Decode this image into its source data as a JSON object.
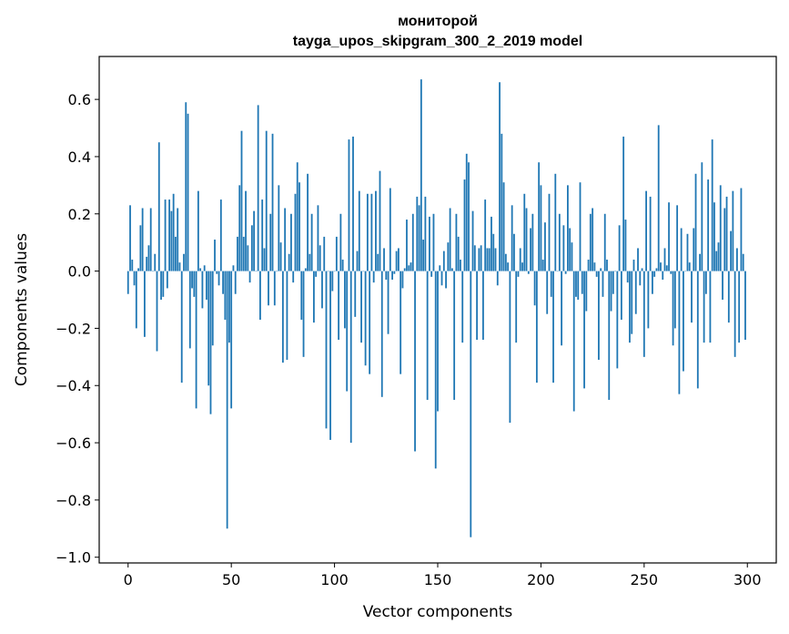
{
  "chart_data": {
    "type": "bar",
    "title_line1": "мониторой",
    "title_line2": "tayga_upos_skipgram_300_2_2019 model",
    "xlabel": "Vector components",
    "ylabel": "Components values",
    "xlim": [
      -14,
      314
    ],
    "ylim": [
      -1.02,
      0.75
    ],
    "xticks": [
      0,
      50,
      100,
      150,
      200,
      250,
      300
    ],
    "yticks": [
      -1.0,
      -0.8,
      -0.6,
      -0.4,
      -0.2,
      0.0,
      0.2,
      0.4,
      0.6
    ],
    "ytick_labels": [
      "−1.0",
      "−0.8",
      "−0.6",
      "−0.4",
      "−0.2",
      "0.0",
      "0.2",
      "0.4",
      "0.6"
    ],
    "bar_color": "#1f77b4",
    "values": [
      -0.08,
      0.23,
      0.04,
      -0.05,
      -0.2,
      0.01,
      0.16,
      0.22,
      -0.23,
      0.05,
      0.09,
      0.22,
      0.0,
      0.06,
      -0.28,
      0.45,
      -0.1,
      -0.09,
      0.25,
      -0.06,
      0.25,
      0.21,
      0.27,
      0.12,
      0.22,
      0.03,
      -0.39,
      0.06,
      0.59,
      0.55,
      -0.27,
      -0.06,
      -0.09,
      -0.48,
      0.28,
      0.01,
      -0.13,
      0.02,
      -0.1,
      -0.4,
      -0.5,
      -0.26,
      0.11,
      -0.01,
      -0.05,
      0.25,
      -0.08,
      -0.17,
      -0.9,
      -0.25,
      -0.48,
      0.02,
      -0.08,
      0.12,
      0.3,
      0.49,
      0.12,
      0.28,
      0.09,
      -0.04,
      0.16,
      0.21,
      0.0,
      0.58,
      -0.17,
      0.25,
      0.08,
      0.49,
      -0.12,
      0.2,
      0.48,
      -0.12,
      0.0,
      0.3,
      0.1,
      -0.32,
      0.22,
      -0.31,
      0.06,
      0.2,
      -0.04,
      0.27,
      0.38,
      0.31,
      -0.17,
      -0.3,
      0.01,
      0.34,
      0.06,
      0.2,
      -0.18,
      -0.02,
      0.23,
      0.09,
      -0.13,
      0.12,
      -0.55,
      0.0,
      -0.59,
      -0.07,
      0.0,
      0.12,
      -0.24,
      0.2,
      0.04,
      -0.2,
      -0.42,
      0.46,
      -0.6,
      0.47,
      -0.16,
      0.07,
      0.28,
      -0.25,
      0.0,
      -0.33,
      0.27,
      -0.36,
      0.27,
      -0.04,
      0.28,
      0.06,
      0.35,
      -0.44,
      0.08,
      -0.03,
      -0.22,
      0.29,
      -0.03,
      -0.01,
      0.07,
      0.08,
      -0.36,
      -0.06,
      0.01,
      0.18,
      0.02,
      0.03,
      0.2,
      -0.63,
      0.26,
      0.23,
      0.67,
      0.11,
      0.26,
      -0.45,
      0.19,
      -0.02,
      0.2,
      -0.69,
      -0.49,
      0.02,
      -0.05,
      0.07,
      -0.06,
      0.1,
      0.22,
      0.01,
      -0.45,
      0.2,
      0.12,
      0.04,
      -0.25,
      0.32,
      0.41,
      0.38,
      -0.93,
      0.21,
      0.09,
      -0.24,
      0.08,
      0.09,
      -0.24,
      0.25,
      0.08,
      0.08,
      0.19,
      0.13,
      0.08,
      -0.05,
      0.66,
      0.48,
      0.31,
      0.06,
      0.03,
      -0.53,
      0.23,
      0.13,
      -0.25,
      -0.02,
      0.08,
      0.03,
      0.27,
      0.22,
      -0.01,
      0.15,
      0.2,
      -0.12,
      -0.39,
      0.38,
      0.3,
      0.04,
      0.17,
      -0.15,
      0.27,
      -0.09,
      -0.39,
      0.34,
      0.0,
      0.2,
      -0.26,
      0.16,
      -0.01,
      0.3,
      0.15,
      0.1,
      -0.49,
      -0.09,
      -0.1,
      0.31,
      -0.08,
      -0.41,
      -0.14,
      0.04,
      0.2,
      0.22,
      0.03,
      -0.02,
      -0.31,
      0.01,
      -0.09,
      0.2,
      0.04,
      -0.45,
      -0.14,
      -0.08,
      0.0,
      -0.34,
      0.16,
      -0.17,
      0.47,
      0.18,
      -0.04,
      -0.25,
      -0.22,
      0.04,
      -0.15,
      0.08,
      -0.05,
      0.01,
      -0.3,
      0.28,
      -0.2,
      0.26,
      -0.08,
      -0.02,
      0.01,
      0.51,
      0.03,
      -0.03,
      0.08,
      0.02,
      0.24,
      -0.01,
      -0.26,
      -0.2,
      0.23,
      -0.43,
      0.15,
      -0.35,
      0.0,
      0.13,
      0.03,
      -0.18,
      0.15,
      0.34,
      -0.41,
      0.06,
      0.38,
      -0.25,
      -0.08,
      0.32,
      -0.25,
      0.46,
      0.24,
      0.07,
      0.1,
      0.3,
      -0.1,
      0.22,
      0.26,
      -0.18,
      0.14,
      0.28,
      -0.3,
      0.08,
      -0.25,
      0.29,
      0.06,
      -0.24
    ]
  }
}
